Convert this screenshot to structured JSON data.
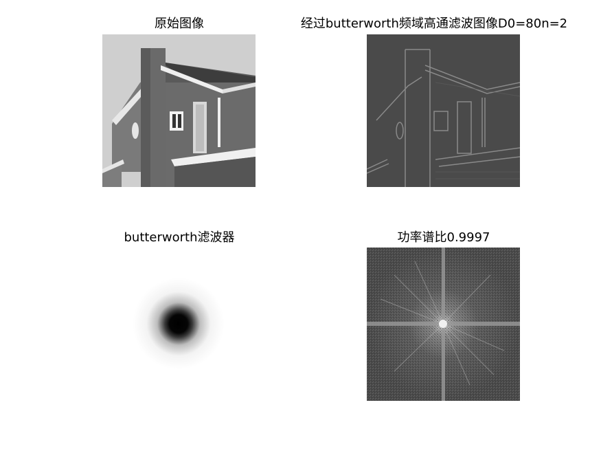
{
  "figure": {
    "panels": [
      {
        "title": "原始图像",
        "content": "grayscale photo of a house"
      },
      {
        "title": "经过butterworth频域高通滤波图像D0=80n=2",
        "content": "high-pass filtered edge image of the house"
      },
      {
        "title": "butterworth滤波器",
        "content": "butterworth filter response: dark center on white"
      },
      {
        "title": "功率谱比0.9997",
        "content": "log power spectrum"
      }
    ]
  }
}
